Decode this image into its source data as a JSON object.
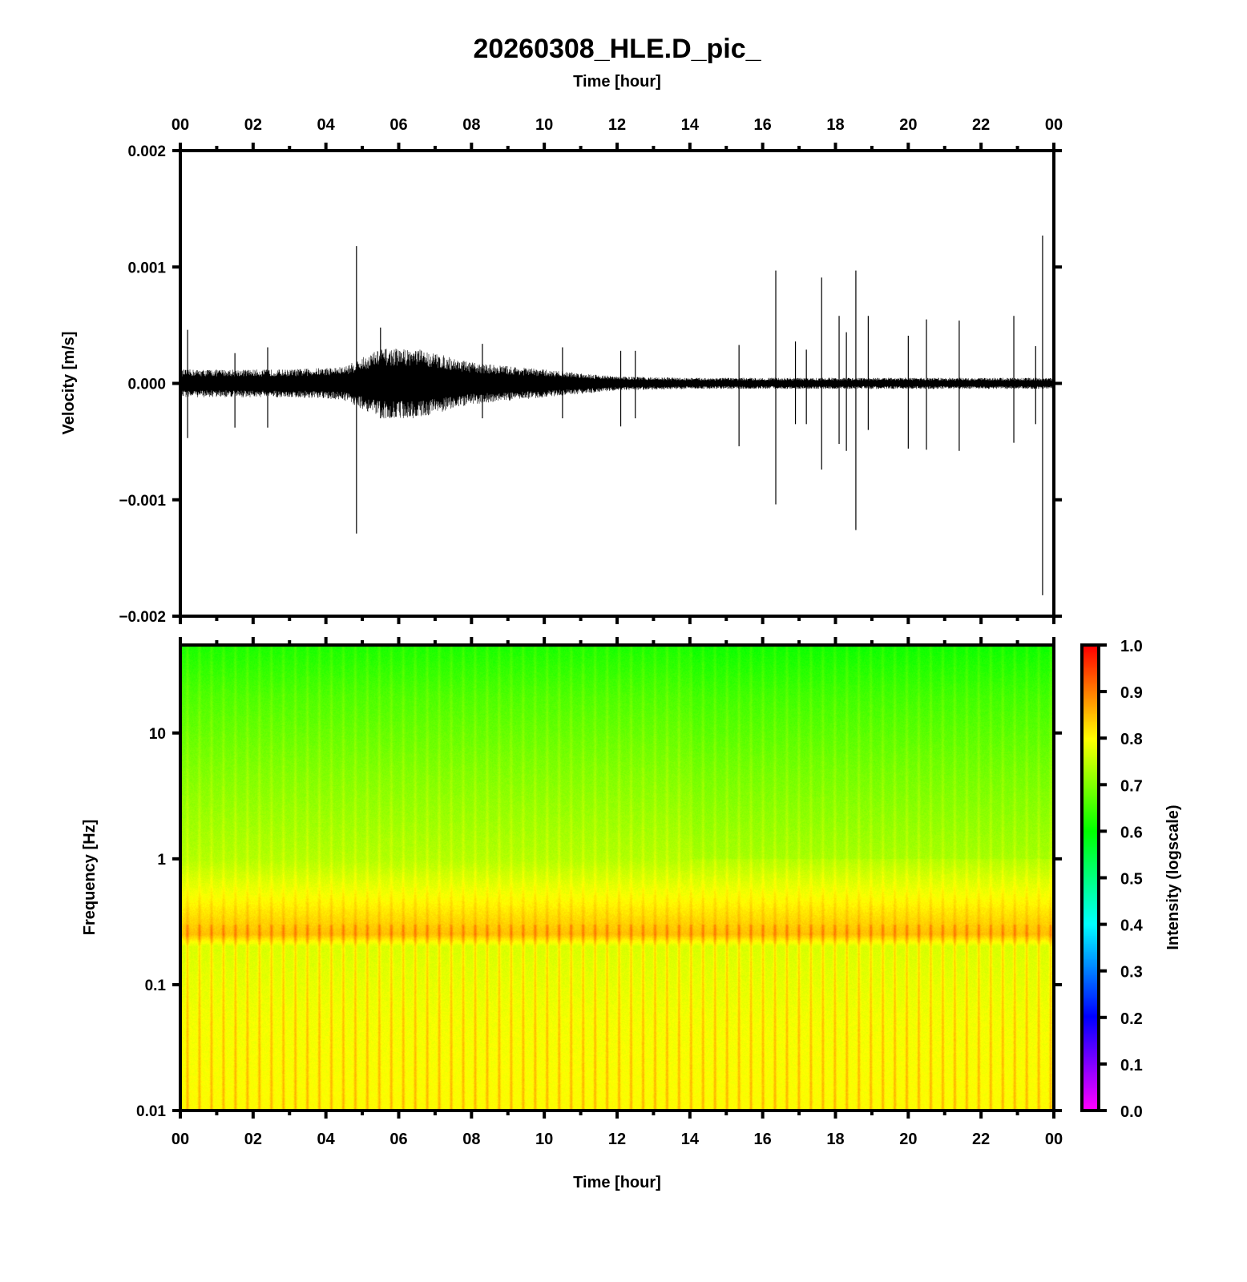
{
  "chart_data": [
    {
      "type": "line",
      "title": "20260308_HLE.D_pic_",
      "subtitle": "Time [hour]",
      "xlabel": "Time [hour]",
      "ylabel": "Velocity [m/s]",
      "xlim": [
        0,
        24
      ],
      "ylim": [
        -0.002,
        0.002
      ],
      "xticks": [
        "00",
        "02",
        "04",
        "06",
        "08",
        "10",
        "12",
        "14",
        "16",
        "18",
        "20",
        "22",
        "00"
      ],
      "yticks": [
        "0.002",
        "0.001",
        "0.000",
        "−0.001",
        "−0.002"
      ],
      "yticks_values": [
        0.002,
        0.001,
        0,
        -0.001,
        -0.002
      ],
      "noise_envelope": {
        "hours": [
          0,
          3,
          4.5,
          5.5,
          6.5,
          8,
          10,
          12,
          14,
          16,
          24
        ],
        "amplitude": [
          0.0001,
          0.0001,
          0.00012,
          0.00025,
          0.00025,
          0.00015,
          0.0001,
          5e-05,
          4e-05,
          4e-05,
          4e-05
        ]
      },
      "spikes": [
        {
          "hour": 0.2,
          "max": 0.00046,
          "min": -0.00047
        },
        {
          "hour": 1.5,
          "max": 0.00026,
          "min": -0.00038
        },
        {
          "hour": 2.4,
          "max": 0.00031,
          "min": -0.00038
        },
        {
          "hour": 4.84,
          "max": 0.00118,
          "min": -0.00129
        },
        {
          "hour": 5.5,
          "max": 0.00048,
          "min": -0.0003
        },
        {
          "hour": 8.3,
          "max": 0.00034,
          "min": -0.0003
        },
        {
          "hour": 10.5,
          "max": 0.00031,
          "min": -0.0003
        },
        {
          "hour": 12.1,
          "max": 0.00028,
          "min": -0.00037
        },
        {
          "hour": 12.5,
          "max": 0.00028,
          "min": -0.0003
        },
        {
          "hour": 15.35,
          "max": 0.00033,
          "min": -0.00054
        },
        {
          "hour": 16.36,
          "max": 0.00097,
          "min": -0.00104
        },
        {
          "hour": 16.9,
          "max": 0.00036,
          "min": -0.00035
        },
        {
          "hour": 17.2,
          "max": 0.00029,
          "min": -0.00035
        },
        {
          "hour": 17.62,
          "max": 0.00091,
          "min": -0.00074
        },
        {
          "hour": 18.1,
          "max": 0.00058,
          "min": -0.00052
        },
        {
          "hour": 18.3,
          "max": 0.00044,
          "min": -0.00058
        },
        {
          "hour": 18.56,
          "max": 0.00097,
          "min": -0.00126
        },
        {
          "hour": 18.9,
          "max": 0.00058,
          "min": -0.0004
        },
        {
          "hour": 20.0,
          "max": 0.00041,
          "min": -0.00056
        },
        {
          "hour": 20.5,
          "max": 0.00055,
          "min": -0.00057
        },
        {
          "hour": 21.4,
          "max": 0.00054,
          "min": -0.00058
        },
        {
          "hour": 22.9,
          "max": 0.00058,
          "min": -0.00051
        },
        {
          "hour": 23.5,
          "max": 0.00032,
          "min": -0.00035
        },
        {
          "hour": 23.69,
          "max": 0.00127,
          "min": -0.00182
        }
      ]
    },
    {
      "type": "heatmap",
      "xlabel": "Time [hour]",
      "ylabel": "Frequency [Hz]",
      "xlim": [
        0,
        24
      ],
      "ylim": [
        0.01,
        50
      ],
      "yscale": "log",
      "xticks": [
        "00",
        "02",
        "04",
        "06",
        "08",
        "10",
        "12",
        "14",
        "16",
        "18",
        "20",
        "22",
        "00"
      ],
      "yticks": [
        "10",
        "1",
        "0.1",
        "0.01"
      ],
      "yticks_values": [
        10,
        1,
        0.1,
        0.01
      ],
      "intensity_profile": {
        "freq_hz": [
          0.01,
          0.05,
          0.2,
          0.25,
          1,
          5,
          20,
          50
        ],
        "intensity": [
          0.8,
          0.79,
          0.77,
          0.85,
          0.74,
          0.7,
          0.66,
          0.62
        ]
      },
      "stripe_period_hours": 0.33,
      "colorbar": {
        "label": "Intensity (logscale)",
        "ticks": [
          "1.0",
          "0.9",
          "0.8",
          "0.7",
          "0.6",
          "0.5",
          "0.4",
          "0.3",
          "0.2",
          "0.1",
          "0.0"
        ],
        "range": [
          0,
          1
        ],
        "colors": [
          "#ff00ff",
          "#0000ff",
          "#00ffff",
          "#00ff00",
          "#ffff00",
          "#ff0000"
        ]
      }
    }
  ]
}
